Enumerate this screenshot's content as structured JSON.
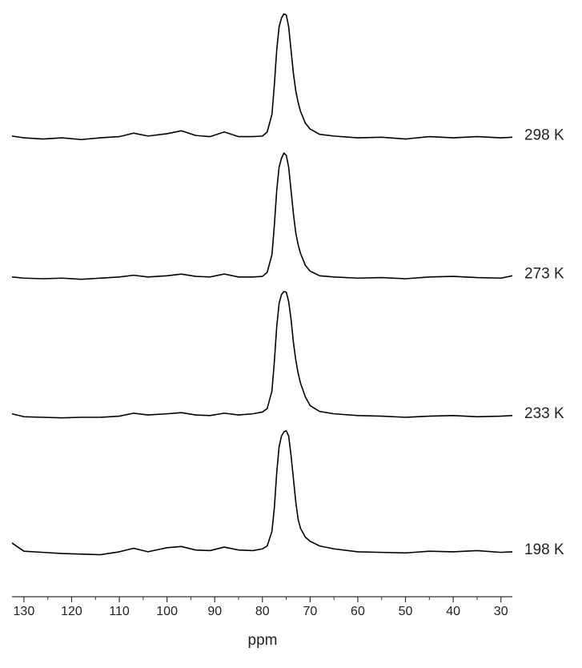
{
  "chart_data": {
    "type": "line",
    "x_label": "ppm",
    "x": [
      132.5,
      130,
      126,
      122,
      118,
      114,
      110,
      107,
      104,
      100,
      97,
      94,
      91,
      88,
      85,
      82,
      80,
      79,
      78,
      77.5,
      77,
      76.5,
      76,
      75.5,
      75,
      74.5,
      74,
      73.5,
      73,
      72.5,
      72,
      71,
      70,
      68,
      65,
      60,
      55,
      50,
      45,
      40,
      35,
      30,
      27.6
    ],
    "series": [
      {
        "name": "298 K",
        "color": "#000000",
        "values": [
          78.1,
          77.8,
          77.6,
          77.8,
          77.5,
          77.8,
          78.0,
          78.6,
          78.1,
          78.5,
          79.0,
          78.2,
          78.0,
          78.8,
          78.0,
          78.0,
          78.1,
          78.8,
          81.8,
          86.8,
          92.8,
          96.8,
          98.3,
          99.0,
          98.8,
          96.8,
          92.8,
          88.8,
          85.8,
          83.8,
          82.3,
          80.3,
          79.3,
          78.4,
          78.1,
          77.8,
          77.9,
          77.6,
          78.0,
          77.8,
          78.0,
          77.8,
          77.9
        ]
      },
      {
        "name": "273 K",
        "color": "#000000",
        "values": [
          54.0,
          53.8,
          53.7,
          53.8,
          53.6,
          53.8,
          54.0,
          54.3,
          54.0,
          54.2,
          54.5,
          54.1,
          54.0,
          54.5,
          54.0,
          54.0,
          54.1,
          54.8,
          57.8,
          62.8,
          68.8,
          72.8,
          74.3,
          75.2,
          74.8,
          72.8,
          68.8,
          64.8,
          61.5,
          59.5,
          58.0,
          56.0,
          55.0,
          54.2,
          54.0,
          53.8,
          53.9,
          53.7,
          54.0,
          54.1,
          53.9,
          53.8,
          54.2
        ]
      },
      {
        "name": "233 K",
        "color": "#000000",
        "values": [
          30.6,
          30.1,
          30.0,
          29.9,
          30.0,
          30.0,
          30.2,
          30.7,
          30.4,
          30.6,
          30.8,
          30.4,
          30.3,
          30.7,
          30.4,
          30.6,
          30.9,
          31.5,
          34.5,
          39.5,
          45.5,
          49.5,
          51.0,
          51.5,
          51.4,
          49.8,
          46.8,
          42.8,
          39.8,
          37.5,
          35.8,
          33.5,
          32.0,
          31.0,
          30.6,
          30.3,
          30.2,
          30.0,
          30.2,
          30.3,
          30.1,
          30.2,
          30.3
        ]
      },
      {
        "name": "198 K",
        "color": "#000000",
        "values": [
          8.5,
          7.1,
          6.9,
          6.7,
          6.6,
          6.5,
          7.0,
          7.6,
          7.0,
          7.7,
          7.9,
          7.3,
          7.2,
          7.8,
          7.3,
          7.2,
          7.5,
          8.0,
          10.5,
          14.5,
          20.5,
          25.0,
          26.8,
          27.5,
          27.7,
          26.8,
          23.5,
          19.5,
          15.5,
          12.5,
          11.0,
          9.5,
          8.8,
          8.0,
          7.5,
          7.0,
          6.9,
          6.8,
          7.1,
          7.0,
          7.2,
          6.9,
          7.0
        ]
      }
    ],
    "xlim": [
      132.5,
      27.6
    ],
    "xticks": [
      130,
      120,
      110,
      100,
      90,
      80,
      70,
      60,
      50,
      40,
      30
    ],
    "xminorticks": [
      125,
      115,
      105,
      95,
      85,
      75,
      65,
      55,
      45,
      35
    ],
    "ylim": [
      0,
      100
    ]
  }
}
